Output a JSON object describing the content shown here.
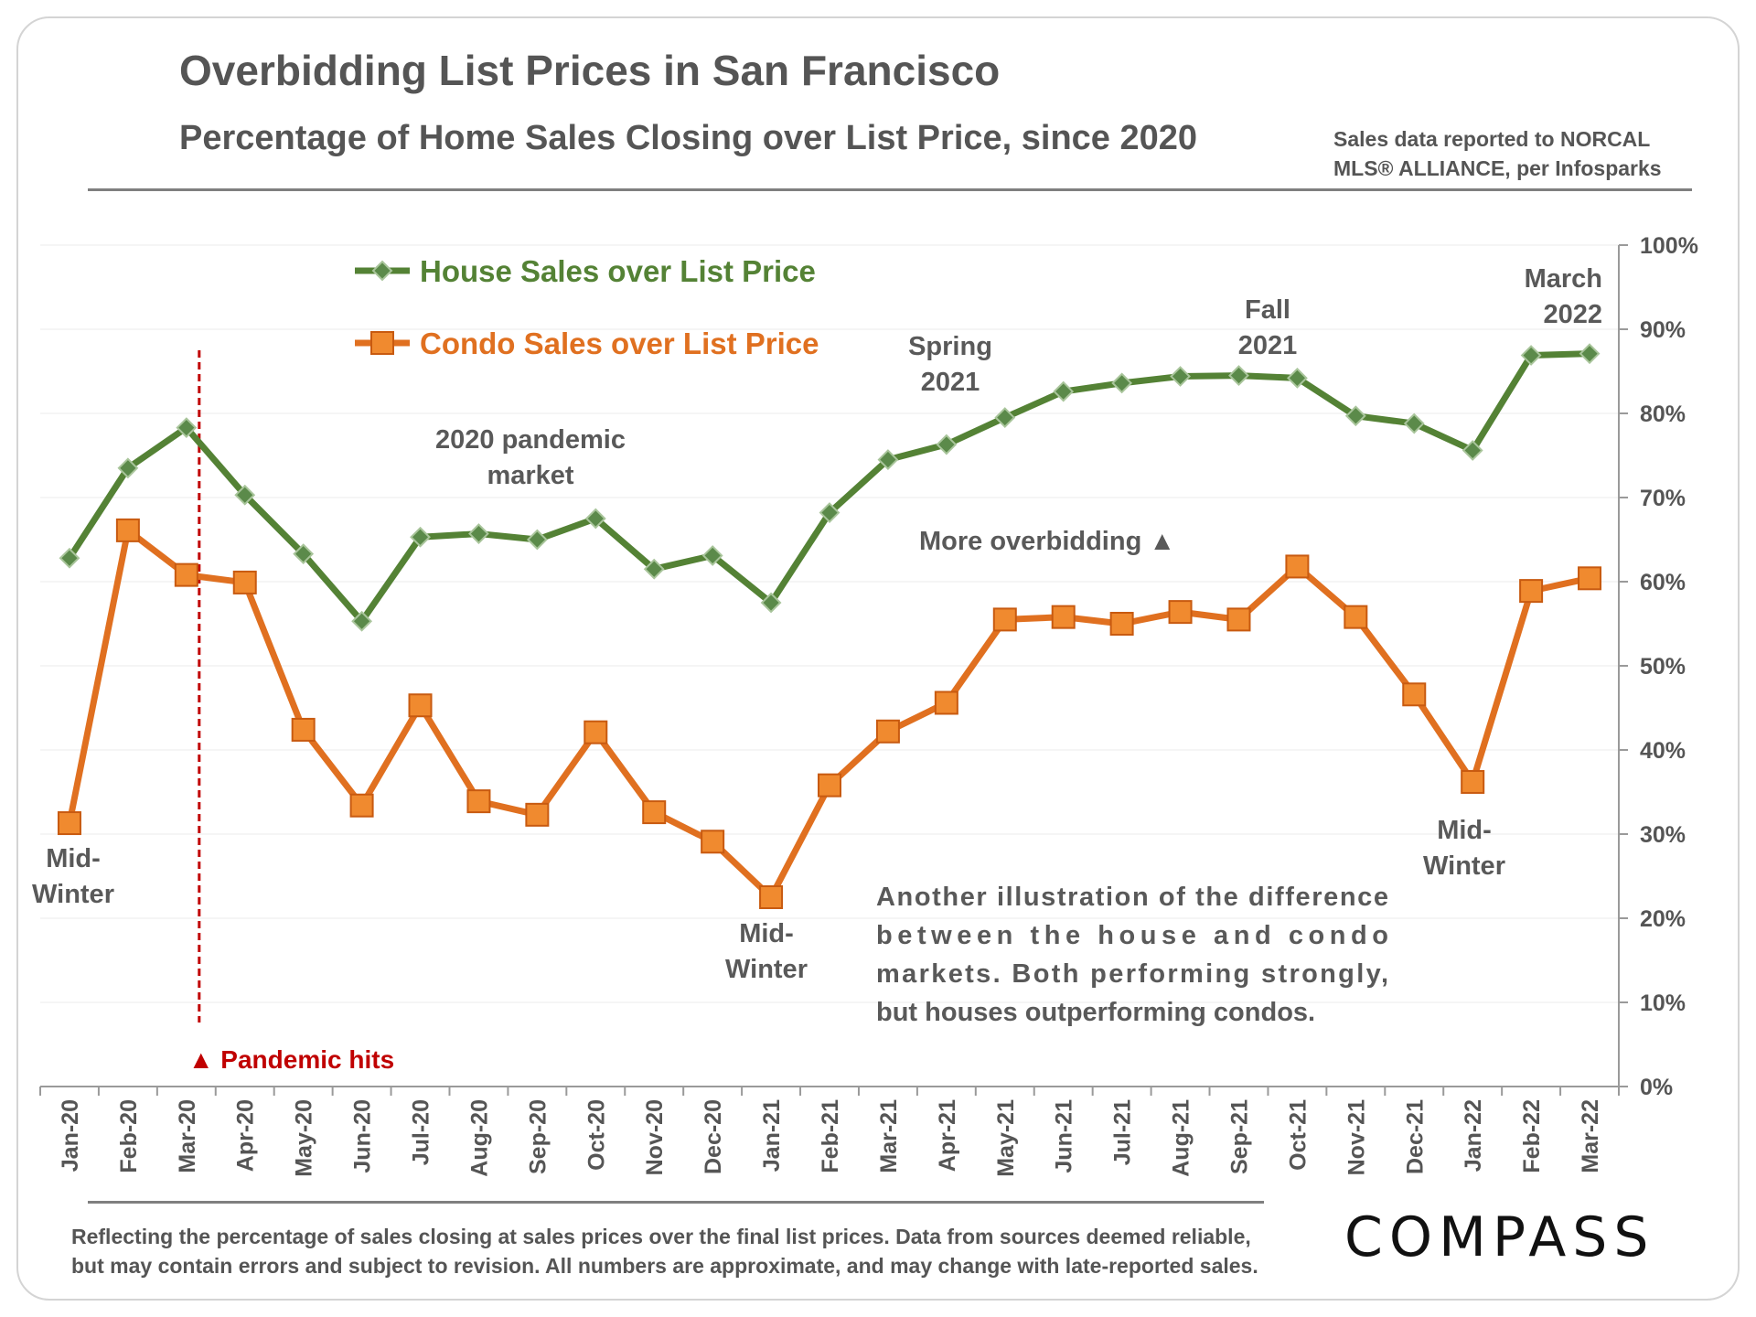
{
  "header": {
    "title": "Overbidding List Prices in San Francisco",
    "subtitle": "Percentage of Home Sales Closing over List Price, since 2020",
    "source_line1": "Sales data reported to NORCAL",
    "source_line2": "MLS® ALLIANCE, per Infosparks"
  },
  "footer": {
    "note_line1": "Reflecting the percentage of sales closing at sales prices over the final list prices. Data from sources deemed reliable,",
    "note_line2": "but may contain errors and subject to revision. All numbers are approximate, and may change with late-reported sales.",
    "logo": "COMPASS"
  },
  "colors": {
    "house": "#548235",
    "house_marker": "#4f7f3f",
    "condo": "#e07020",
    "condo_marker": "#f08a2f",
    "pandemic": "#c00000",
    "text": "#555555"
  },
  "chart_data": {
    "type": "line",
    "categories": [
      "Jan-20",
      "Feb-20",
      "Mar-20",
      "Apr-20",
      "May-20",
      "Jun-20",
      "Jul-20",
      "Aug-20",
      "Sep-20",
      "Oct-20",
      "Nov-20",
      "Dec-20",
      "Jan-21",
      "Feb-21",
      "Mar-21",
      "Apr-21",
      "May-21",
      "Jun-21",
      "Jul-21",
      "Aug-21",
      "Sep-21",
      "Oct-21",
      "Nov-21",
      "Dec-21",
      "Jan-22",
      "Feb-22",
      "Mar-22"
    ],
    "series": [
      {
        "name": "House Sales over List Price",
        "marker": "diamond",
        "values": [
          62.8,
          73.5,
          78.3,
          70.3,
          63.3,
          55.3,
          65.3,
          65.7,
          65.0,
          67.5,
          61.5,
          63.1,
          57.5,
          68.2,
          74.5,
          76.3,
          79.5,
          82.6,
          83.6,
          84.4,
          84.5,
          84.2,
          79.7,
          78.8,
          75.6,
          86.9,
          87.1
        ]
      },
      {
        "name": "Condo Sales over List Price",
        "marker": "square",
        "values": [
          31.3,
          66.1,
          60.8,
          59.9,
          42.4,
          33.4,
          45.3,
          33.9,
          32.3,
          42.1,
          32.6,
          29.1,
          22.5,
          35.8,
          42.2,
          45.6,
          55.5,
          55.8,
          55.0,
          56.4,
          55.5,
          61.8,
          55.8,
          46.6,
          36.2,
          58.9,
          60.4
        ]
      }
    ],
    "y_axis": {
      "range": [
        0,
        100
      ],
      "ticks": [
        "0%",
        "10%",
        "20%",
        "30%",
        "40%",
        "50%",
        "60%",
        "70%",
        "80%",
        "90%",
        "100%"
      ],
      "position": "right"
    },
    "grid": "horizontal, faint",
    "legend_placement": "top-left",
    "pandemic_marker": {
      "at": "Mar-20",
      "label": "▲ Pandemic hits"
    },
    "annotations": {
      "midwinter_1": [
        "Mid-",
        "Winter"
      ],
      "midwinter_2": [
        "Mid-",
        "Winter"
      ],
      "midwinter_3": [
        "Mid-",
        "Winter"
      ],
      "pandemic_market": [
        "2020 pandemic",
        "market"
      ],
      "spring_2021": [
        "Spring",
        "2021"
      ],
      "fall_2021": [
        "Fall",
        "2021"
      ],
      "march_2022": [
        "March",
        "2022"
      ],
      "more_overbidding": "More overbidding ▲",
      "illustration": [
        "Another illustration of the difference",
        "between the house and condo",
        "markets. Both performing strongly,",
        "but houses outperforming condos."
      ]
    }
  }
}
